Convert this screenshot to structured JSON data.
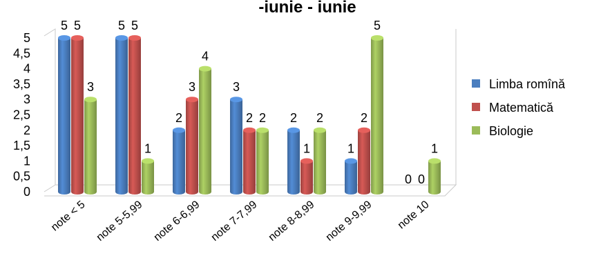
{
  "chart_data": {
    "type": "bar",
    "title": "-iunie - iunie",
    "categories": [
      "note < 5",
      "note 5-5,99",
      "note 6-6,99",
      "note 7-7,99",
      "note 8-8,99",
      "note 9-9,99",
      "note 10"
    ],
    "series": [
      {
        "name": "Limba romînă",
        "values": [
          5,
          5,
          2,
          3,
          2,
          1,
          0
        ],
        "color": "#4a7ebf"
      },
      {
        "name": "Matematică",
        "values": [
          5,
          5,
          3,
          2,
          1,
          2,
          0
        ],
        "color": "#c0504d"
      },
      {
        "name": "Biologie",
        "values": [
          3,
          1,
          4,
          2,
          2,
          5,
          1
        ],
        "color": "#9bbb59"
      }
    ],
    "yticks": [
      "0",
      "0,5",
      "1",
      "1,5",
      "2",
      "2,5",
      "3",
      "3,5",
      "4",
      "4,5",
      "5"
    ],
    "ylim": [
      0,
      5
    ],
    "legend_position": "right",
    "style": "3d-cylinder"
  }
}
